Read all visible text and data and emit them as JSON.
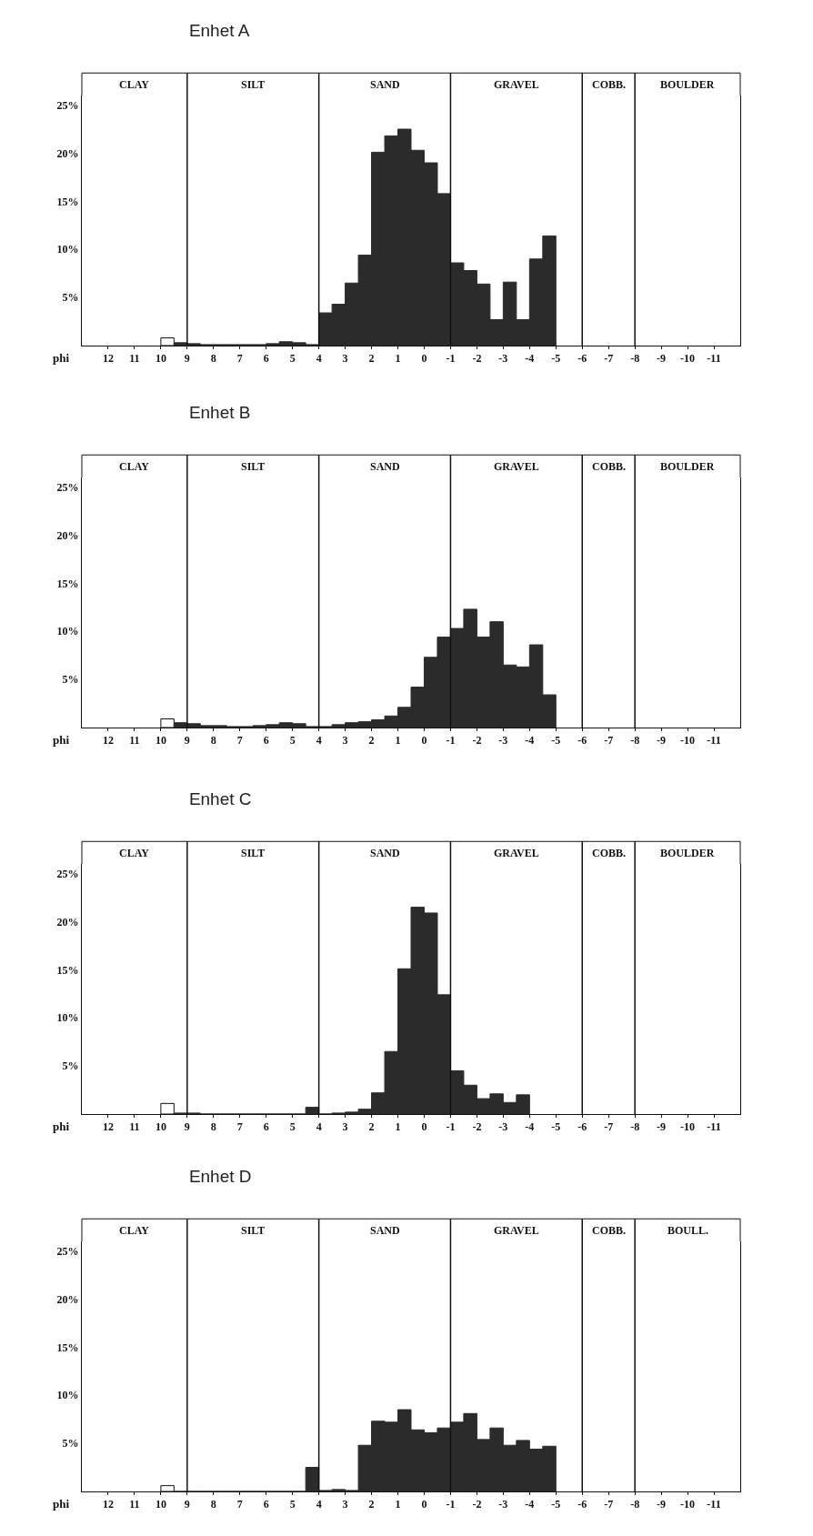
{
  "chart_data": [
    {
      "type": "histogram",
      "title": "Enhet A",
      "xlabel": "phi",
      "bins": [
        10,
        9.5,
        9,
        8.5,
        8,
        7.5,
        7,
        6.5,
        6,
        5.5,
        5,
        4.5,
        4,
        3.5,
        3,
        2.5,
        2,
        1.5,
        1,
        0.5,
        0,
        -0.5,
        -1,
        -1.5,
        -2,
        -2.5,
        -3,
        -3.5,
        -4,
        -4.5,
        -5
      ],
      "values": [
        0.8,
        0.3,
        0.2,
        0.1,
        0.1,
        0.1,
        0.1,
        0.1,
        0.2,
        0.4,
        0.3,
        0.1,
        3.4,
        4.3,
        6.5,
        9.4,
        20.1,
        21.8,
        22.5,
        20.3,
        19.0,
        15.8,
        8.6,
        7.8,
        6.4,
        2.7,
        6.6,
        2.7,
        9.0,
        11.4
      ],
      "colors": [
        "#ffffff",
        "#2b2b2b",
        "#2b2b2b",
        "#2b2b2b",
        "#2b2b2b",
        "#2b2b2b",
        "#2b2b2b",
        "#2b2b2b",
        "#2b2b2b",
        "#2b2b2b",
        "#2b2b2b",
        "#2b2b2b",
        "#2b2b2b",
        "#2b2b2b",
        "#2b2b2b",
        "#2b2b2b",
        "#2b2b2b",
        "#2b2b2b",
        "#2b2b2b",
        "#2b2b2b",
        "#2b2b2b",
        "#2b2b2b",
        "#2b2b2b",
        "#2b2b2b",
        "#2b2b2b",
        "#2b2b2b",
        "#2b2b2b",
        "#2b2b2b",
        "#2b2b2b",
        "#2b2b2b"
      ],
      "xlim": [
        13,
        -12
      ],
      "xticks": [
        12,
        11,
        10,
        9,
        8,
        7,
        6,
        5,
        4,
        3,
        2,
        1,
        0,
        -1,
        -2,
        -3,
        -4,
        -5,
        -6,
        -7,
        -8,
        -9,
        -10,
        -11
      ],
      "ylim": [
        0,
        26
      ],
      "yticks": [
        {
          "value": 5,
          "label": "5%"
        },
        {
          "value": 10,
          "label": "10%"
        },
        {
          "value": 15,
          "label": "15%"
        },
        {
          "value": 20,
          "label": "20%"
        },
        {
          "value": 25,
          "label": "25%"
        }
      ],
      "ref_lines": [
        {
          "axis": "x",
          "value": 9
        },
        {
          "axis": "x",
          "value": 4
        },
        {
          "axis": "x",
          "value": -1
        },
        {
          "axis": "x",
          "value": -6
        },
        {
          "axis": "x",
          "value": -8
        }
      ],
      "annotations": [
        "CLAY",
        "SILT",
        "SAND",
        "GRAVEL",
        "COBB.",
        "BOULDER"
      ]
    },
    {
      "type": "histogram",
      "title": "Enhet B",
      "xlabel": "phi",
      "bins": [
        10,
        9.5,
        9,
        8.5,
        8,
        7.5,
        7,
        6.5,
        6,
        5.5,
        5,
        4.5,
        4,
        3.5,
        3,
        2.5,
        2,
        1.5,
        1,
        0.5,
        0,
        -0.5,
        -1,
        -1.5,
        -2,
        -2.5,
        -3,
        -3.5,
        -4,
        -4.5,
        -5
      ],
      "values": [
        0.9,
        0.5,
        0.4,
        0.2,
        0.2,
        0.1,
        0.1,
        0.2,
        0.3,
        0.5,
        0.4,
        0.1,
        0.1,
        0.3,
        0.5,
        0.6,
        0.8,
        1.2,
        2.1,
        4.2,
        7.3,
        9.4,
        10.3,
        12.3,
        9.4,
        11.0,
        6.5,
        6.3,
        8.6,
        3.4
      ],
      "colors": [
        "#ffffff",
        "#2b2b2b",
        "#2b2b2b",
        "#2b2b2b",
        "#2b2b2b",
        "#2b2b2b",
        "#2b2b2b",
        "#2b2b2b",
        "#2b2b2b",
        "#2b2b2b",
        "#2b2b2b",
        "#2b2b2b",
        "#2b2b2b",
        "#2b2b2b",
        "#2b2b2b",
        "#2b2b2b",
        "#2b2b2b",
        "#2b2b2b",
        "#2b2b2b",
        "#2b2b2b",
        "#2b2b2b",
        "#2b2b2b",
        "#2b2b2b",
        "#2b2b2b",
        "#2b2b2b",
        "#2b2b2b",
        "#2b2b2b",
        "#2b2b2b",
        "#2b2b2b",
        "#2b2b2b"
      ],
      "xlim": [
        13,
        -12
      ],
      "xticks": [
        12,
        11,
        10,
        9,
        8,
        7,
        6,
        5,
        4,
        3,
        2,
        1,
        0,
        -1,
        -2,
        -3,
        -4,
        -5,
        -6,
        -7,
        -8,
        -9,
        -10,
        -11
      ],
      "ylim": [
        0,
        26
      ],
      "yticks": [
        {
          "value": 5,
          "label": "5%"
        },
        {
          "value": 10,
          "label": "10%"
        },
        {
          "value": 15,
          "label": "15%"
        },
        {
          "value": 20,
          "label": "20%"
        },
        {
          "value": 25,
          "label": "25%"
        }
      ],
      "ref_lines": [
        {
          "axis": "x",
          "value": 9
        },
        {
          "axis": "x",
          "value": 4
        },
        {
          "axis": "x",
          "value": -1
        },
        {
          "axis": "x",
          "value": -6
        },
        {
          "axis": "x",
          "value": -8
        }
      ],
      "annotations": [
        "CLAY",
        "SILT",
        "SAND",
        "GRAVEL",
        "COBB.",
        "BOULDER"
      ]
    },
    {
      "type": "histogram",
      "title": "Enhet C",
      "xlabel": "phi",
      "bins": [
        10,
        9.5,
        9,
        8.5,
        8,
        7.5,
        7,
        6.5,
        6,
        5.5,
        5,
        4.5,
        4,
        3.5,
        3,
        2.5,
        2,
        1.5,
        1,
        0.5,
        0,
        -0.5,
        -1,
        -1.5,
        -2,
        -2.5,
        -3,
        -3.5,
        -4
      ],
      "values": [
        1.1,
        0.1,
        0.1,
        0,
        0,
        0,
        0,
        0,
        0,
        0,
        0,
        0.7,
        0,
        0.1,
        0.2,
        0.5,
        2.2,
        6.5,
        15.1,
        21.5,
        20.9,
        12.4,
        4.5,
        3.0,
        1.6,
        2.1,
        1.2,
        2.0
      ],
      "colors": [
        "#ffffff",
        "#2b2b2b",
        "#2b2b2b",
        "#2b2b2b",
        "#2b2b2b",
        "#2b2b2b",
        "#2b2b2b",
        "#2b2b2b",
        "#2b2b2b",
        "#2b2b2b",
        "#2b2b2b",
        "#2b2b2b",
        "#2b2b2b",
        "#2b2b2b",
        "#2b2b2b",
        "#2b2b2b",
        "#2b2b2b",
        "#2b2b2b",
        "#2b2b2b",
        "#2b2b2b",
        "#2b2b2b",
        "#2b2b2b",
        "#2b2b2b",
        "#2b2b2b",
        "#2b2b2b",
        "#2b2b2b",
        "#2b2b2b",
        "#2b2b2b"
      ],
      "xlim": [
        13,
        -12
      ],
      "xticks": [
        12,
        11,
        10,
        9,
        8,
        7,
        6,
        5,
        4,
        3,
        2,
        1,
        0,
        -1,
        -2,
        -3,
        -4,
        -5,
        -6,
        -7,
        -8,
        -9,
        -10,
        -11
      ],
      "ylim": [
        0,
        26
      ],
      "yticks": [
        {
          "value": 5,
          "label": "5%"
        },
        {
          "value": 10,
          "label": "10%"
        },
        {
          "value": 15,
          "label": "15%"
        },
        {
          "value": 20,
          "label": "20%"
        },
        {
          "value": 25,
          "label": "25%"
        }
      ],
      "ref_lines": [
        {
          "axis": "x",
          "value": 9
        },
        {
          "axis": "x",
          "value": 4
        },
        {
          "axis": "x",
          "value": -1
        },
        {
          "axis": "x",
          "value": -6
        },
        {
          "axis": "x",
          "value": -8
        }
      ],
      "annotations": [
        "CLAY",
        "SILT",
        "SAND",
        "GRAVEL",
        "COBB.",
        "BOULDER"
      ]
    },
    {
      "type": "histogram",
      "title": "Enhet D",
      "xlabel": "phi",
      "bins": [
        10,
        9.5,
        9,
        8.5,
        8,
        7.5,
        7,
        6.5,
        6,
        5.5,
        5,
        4.5,
        4,
        3.5,
        3,
        2.5,
        2,
        1.5,
        1,
        0.5,
        0,
        -0.5,
        -1,
        -1.5,
        -2,
        -2.5,
        -3,
        -3.5,
        -4,
        -4.5,
        -5
      ],
      "values": [
        0.6,
        0,
        0,
        0,
        0,
        0,
        0,
        0,
        0,
        0,
        0,
        2.5,
        0.1,
        0.2,
        0.1,
        4.8,
        7.3,
        7.2,
        8.5,
        6.4,
        6.1,
        6.6,
        7.2,
        8.1,
        5.4,
        6.6,
        4.8,
        5.3,
        4.4,
        4.7
      ],
      "colors": [
        "#ffffff",
        "#2b2b2b",
        "#2b2b2b",
        "#2b2b2b",
        "#2b2b2b",
        "#2b2b2b",
        "#2b2b2b",
        "#2b2b2b",
        "#2b2b2b",
        "#2b2b2b",
        "#2b2b2b",
        "#2b2b2b",
        "#2b2b2b",
        "#2b2b2b",
        "#2b2b2b",
        "#2b2b2b",
        "#2b2b2b",
        "#2b2b2b",
        "#2b2b2b",
        "#2b2b2b",
        "#2b2b2b",
        "#2b2b2b",
        "#2b2b2b",
        "#2b2b2b",
        "#2b2b2b",
        "#2b2b2b",
        "#2b2b2b",
        "#2b2b2b",
        "#2b2b2b",
        "#2b2b2b"
      ],
      "xlim": [
        13,
        -12
      ],
      "xticks": [
        12,
        11,
        10,
        9,
        8,
        7,
        6,
        5,
        4,
        3,
        2,
        1,
        0,
        -1,
        -2,
        -3,
        -4,
        -5,
        -6,
        -7,
        -8,
        -9,
        -10,
        -11
      ],
      "ylim": [
        0,
        26
      ],
      "yticks": [
        {
          "value": 5,
          "label": "5%"
        },
        {
          "value": 10,
          "label": "10%"
        },
        {
          "value": 15,
          "label": "15%"
        },
        {
          "value": 20,
          "label": "20%"
        },
        {
          "value": 25,
          "label": "25%"
        }
      ],
      "ref_lines": [
        {
          "axis": "x",
          "value": 9
        },
        {
          "axis": "x",
          "value": 4
        },
        {
          "axis": "x",
          "value": -1
        },
        {
          "axis": "x",
          "value": -6
        },
        {
          "axis": "x",
          "value": -8
        }
      ],
      "annotations": [
        "CLAY",
        "SILT",
        "SAND",
        "GRAVEL",
        "COBB.",
        "BOULL."
      ]
    }
  ]
}
